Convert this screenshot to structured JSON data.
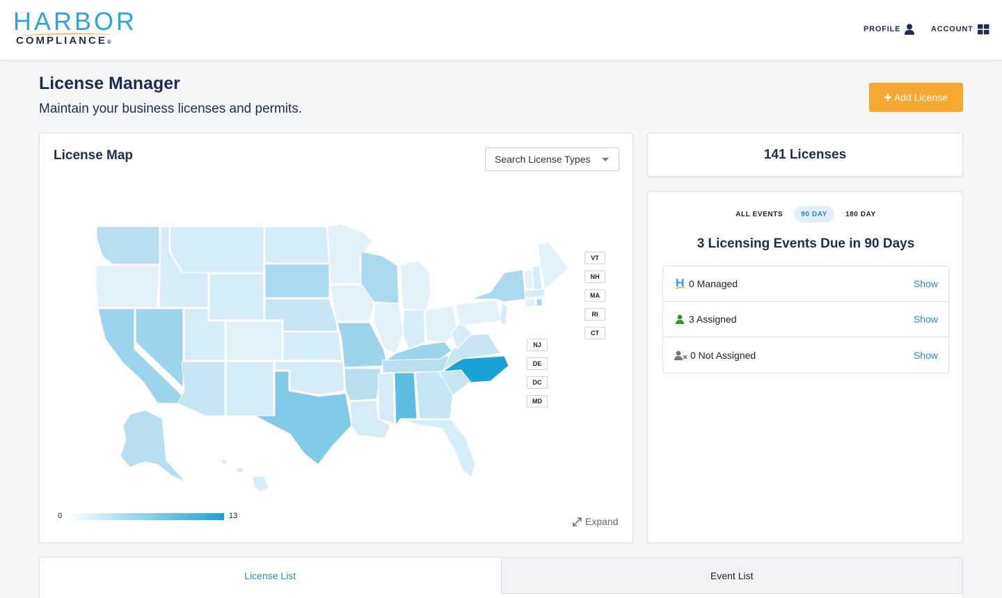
{
  "brand": {
    "name_top": "HARBOR",
    "name_bottom": "COMPLIANCE",
    "trademark": "®"
  },
  "nav": {
    "profile_label": "PROFILE",
    "account_label": "ACCOUNT",
    "profile_icon": "user-icon",
    "account_icon": "grid-icon"
  },
  "page": {
    "title": "License Manager",
    "subtitle": "Maintain your business licenses and permits.",
    "add_button_label": "Add License"
  },
  "map_card": {
    "title": "License Map",
    "search_label": "Search License Types",
    "legend_min": "0",
    "legend_max": "13",
    "expand_label": "Expand",
    "colors": {
      "lowest": "#ffffff",
      "highest": "#1aa2d8"
    },
    "small_state_tags": [
      "VT",
      "NH",
      "MA",
      "RI",
      "CT",
      "NJ",
      "DE",
      "DC",
      "MD"
    ]
  },
  "licenses": {
    "count_label": "141 Licenses"
  },
  "events": {
    "tabs": [
      {
        "label": "ALL EVENTS",
        "active": false
      },
      {
        "label": "90 DAY",
        "active": true
      },
      {
        "label": "180 DAY",
        "active": false
      }
    ],
    "heading": "3 Licensing Events Due in 90 Days",
    "rows": [
      {
        "label": "0 Managed",
        "icon": "harbor-h-icon",
        "action": "Show"
      },
      {
        "label": "3 Assigned",
        "icon": "user-green-icon",
        "action": "Show"
      },
      {
        "label": "0 Not Assigned",
        "icon": "user-x-icon",
        "action": "Show"
      }
    ]
  },
  "bottom_tabs": [
    {
      "label": "License List",
      "active": true
    },
    {
      "label": "Event List",
      "active": false
    }
  ],
  "theme": {
    "accent": "#2a87c9",
    "button": "#f7a830",
    "navy": "#1f2d4d"
  }
}
